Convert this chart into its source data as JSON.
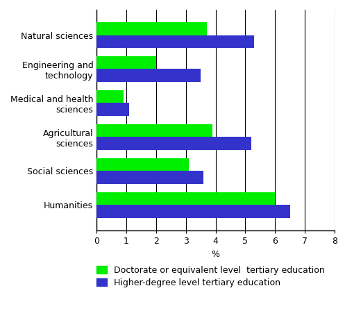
{
  "categories": [
    "Natural sciences",
    "Engineering and\ntechnology",
    "Medical and health\nsciences",
    "Agricultural\nsciences",
    "Social sciences",
    "Humanities"
  ],
  "doctorate_values": [
    3.7,
    2.0,
    0.9,
    3.9,
    3.1,
    6.0
  ],
  "higher_degree_values": [
    5.3,
    3.5,
    1.1,
    5.2,
    3.6,
    6.5
  ],
  "doctorate_color": "#00ee00",
  "higher_degree_color": "#3333cc",
  "xlim": [
    0,
    8
  ],
  "xticks": [
    0,
    1,
    2,
    3,
    4,
    5,
    6,
    7,
    8
  ],
  "xlabel": "%",
  "legend_doctorate": "Doctorate or equivalent level  tertiary education",
  "legend_higher": "Higher-degree level tertiary education",
  "bar_height": 0.38,
  "background_color": "#ffffff",
  "grid_color": "#000000",
  "tick_fontsize": 9,
  "label_fontsize": 9,
  "legend_fontsize": 9
}
